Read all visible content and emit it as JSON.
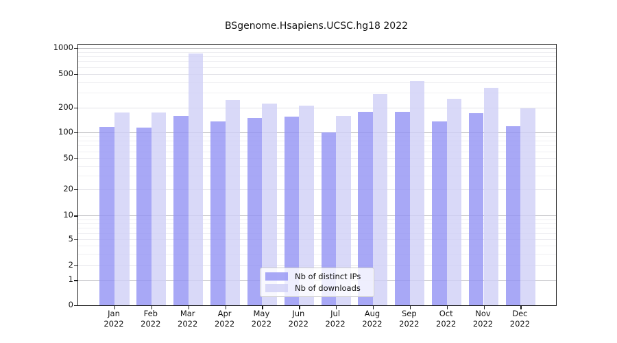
{
  "title": "BSgenome.Hsapiens.UCSC.hg18 2022",
  "chart_data": {
    "type": "bar",
    "title": "BSgenome.Hsapiens.UCSC.hg18 2022",
    "categories": [
      "Jan 2022",
      "Feb 2022",
      "Mar 2022",
      "Apr 2022",
      "May 2022",
      "Jun 2022",
      "Jul 2022",
      "Aug 2022",
      "Sep 2022",
      "Oct 2022",
      "Nov 2022",
      "Dec 2022"
    ],
    "month_labels": [
      "Jan",
      "Feb",
      "Mar",
      "Apr",
      "May",
      "Jun",
      "Jul",
      "Aug",
      "Sep",
      "Oct",
      "Nov",
      "Dec"
    ],
    "year_label": "2022",
    "series": [
      {
        "name": "Nb of distinct IPs",
        "color": "rgba(146,146,244,0.8)",
        "color_on_white": "#a8a8f6",
        "values": [
          115,
          113,
          158,
          134,
          150,
          155,
          99,
          178,
          177,
          134,
          170,
          118
        ]
      },
      {
        "name": "Nb of downloads",
        "color": "rgba(208,208,246,0.8)",
        "color_on_white": "#d9d9f7",
        "values": [
          173,
          173,
          860,
          246,
          223,
          210,
          157,
          288,
          410,
          255,
          340,
          197
        ]
      }
    ],
    "xlabel": "",
    "ylabel": "",
    "y_axis": {
      "scale": "log-like above 1, compressed linear segment down to 0",
      "tick_labels": [
        "1000",
        "500",
        "200",
        "100",
        "50",
        "20",
        "10",
        "5",
        "2",
        "1",
        "0"
      ],
      "ticks": [
        1000,
        500,
        200,
        100,
        50,
        20,
        10,
        5,
        2,
        1,
        0
      ],
      "range": [
        0,
        1070
      ]
    },
    "grid": true,
    "legend_position": "inside plot, lower middle-right"
  },
  "legend": {
    "items": [
      {
        "label": "Nb of distinct IPs",
        "color": "rgba(146,146,244,0.8)"
      },
      {
        "label": "Nb of downloads",
        "color": "rgba(208,208,246,0.8)"
      }
    ]
  }
}
